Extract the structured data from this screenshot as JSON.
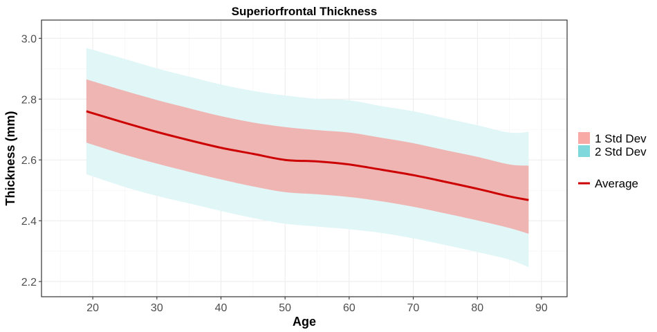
{
  "chart_data": {
    "type": "area",
    "title": "Superiorfrontal Thickness",
    "xlabel": "Age",
    "ylabel": "Thickness (mm)",
    "xlim": [
      12,
      94
    ],
    "ylim": [
      2.15,
      3.06
    ],
    "xticks": [
      20,
      30,
      40,
      50,
      60,
      70,
      80,
      90
    ],
    "yticks": [
      2.2,
      2.4,
      2.6,
      2.8,
      3.0
    ],
    "ytick_labels": [
      "2.2",
      "2.4",
      "2.6",
      "2.8",
      "3.0"
    ],
    "grid": true,
    "legend_position": "right",
    "legend": [
      {
        "label": "1 Std Dev",
        "kind": "fill",
        "color": "#f8aaa6"
      },
      {
        "label": "2 Std Dev",
        "kind": "fill",
        "color": "#7fd9dc"
      },
      {
        "label": "Average",
        "kind": "line",
        "color": "#cc0000"
      }
    ],
    "x": [
      19,
      25,
      30,
      35,
      40,
      45,
      50,
      55,
      60,
      65,
      70,
      75,
      80,
      85,
      88
    ],
    "series": [
      {
        "name": "Average",
        "values": [
          2.76,
          2.722,
          2.692,
          2.665,
          2.64,
          2.62,
          2.6,
          2.595,
          2.585,
          2.568,
          2.55,
          2.528,
          2.505,
          2.48,
          2.468
        ]
      },
      {
        "name": "1 Std Dev",
        "lower": [
          2.657,
          2.617,
          2.588,
          2.561,
          2.536,
          2.513,
          2.494,
          2.487,
          2.478,
          2.464,
          2.446,
          2.424,
          2.401,
          2.376,
          2.357
        ],
        "upper": [
          2.865,
          2.827,
          2.797,
          2.77,
          2.744,
          2.723,
          2.708,
          2.698,
          2.69,
          2.673,
          2.655,
          2.632,
          2.61,
          2.585,
          2.581
        ]
      },
      {
        "name": "2 Std Dev",
        "lower": [
          2.553,
          2.511,
          2.482,
          2.457,
          2.432,
          2.409,
          2.39,
          2.381,
          2.372,
          2.36,
          2.342,
          2.32,
          2.297,
          2.272,
          2.247
        ],
        "upper": [
          2.968,
          2.932,
          2.901,
          2.874,
          2.848,
          2.827,
          2.812,
          2.801,
          2.796,
          2.777,
          2.76,
          2.737,
          2.714,
          2.69,
          2.692
        ]
      }
    ]
  }
}
